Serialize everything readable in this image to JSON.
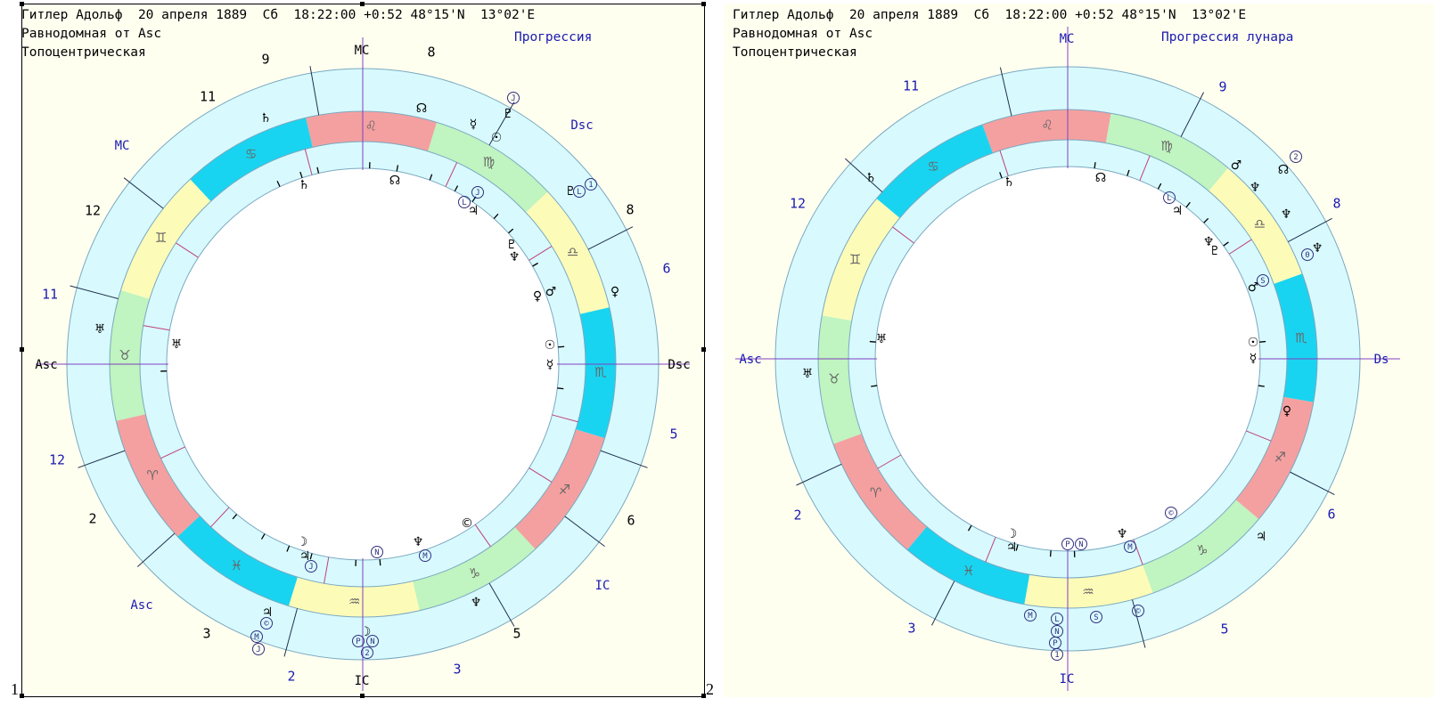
{
  "panels": [
    {
      "header": [
        "Гитлер Адольф  20 апреля 1889  Сб  18:22:00 +0:52 48°15'N  13°02'E",
        "Равнодомная от Asc",
        "Топоцентрическая"
      ],
      "mode": "Прогрессия",
      "number": "1",
      "axis_labels": {
        "asc": "Asc",
        "dsc": "Dsc",
        "mc": "MC",
        "ic": "IC"
      },
      "inner_axis_labels": {
        "asc": "Asc",
        "dsc": "Dsc",
        "mc": "MC",
        "ic": "IC"
      },
      "outer_house_numbers": [
        "9",
        "8",
        "8",
        "6",
        "5",
        "6",
        "3",
        "2",
        "3",
        "12",
        "11",
        "12",
        "11"
      ],
      "signs": [
        "♌",
        "♋",
        "♊",
        "♉",
        "♈",
        "♓",
        "♒",
        "♑",
        "♐",
        "♏",
        "♎",
        "♍"
      ],
      "planet_glyphs": [
        "♄",
        "☊",
        "☿",
        "♃",
        "♇",
        "♆",
        "♀",
        "♂",
        "☉",
        "☽",
        "♆"
      ]
    },
    {
      "header": [
        "Гитлер Адольф  20 апреля 1889  Сб  18:22:00 +0:52 48°15'N  13°02'E",
        "Равнодомная от Asc",
        "Топоцентрическая"
      ],
      "mode": "Прогрессия лунара",
      "number": "2",
      "axis_labels": {
        "asc": "Asc",
        "dsc": "Ds",
        "mc": "MC",
        "ic": "IC"
      },
      "outer_house_numbers": [
        "11",
        "9",
        "8",
        "6",
        "5",
        "3",
        "2",
        "12"
      ],
      "signs": [
        "♌",
        "♋",
        "♊",
        "♉",
        "♈",
        "♓",
        "♒",
        "♑",
        "♐",
        "♏",
        "♎",
        "♍"
      ]
    }
  ],
  "colors": {
    "fire": "#f4a0a0",
    "water": "#19d4f0",
    "air": "#fdfbb8",
    "earth": "#c0f4c0",
    "ring": "#d8fafe",
    "house_line": "#c0407a",
    "axis": "#8040c0",
    "label": "#1a1ab0"
  }
}
